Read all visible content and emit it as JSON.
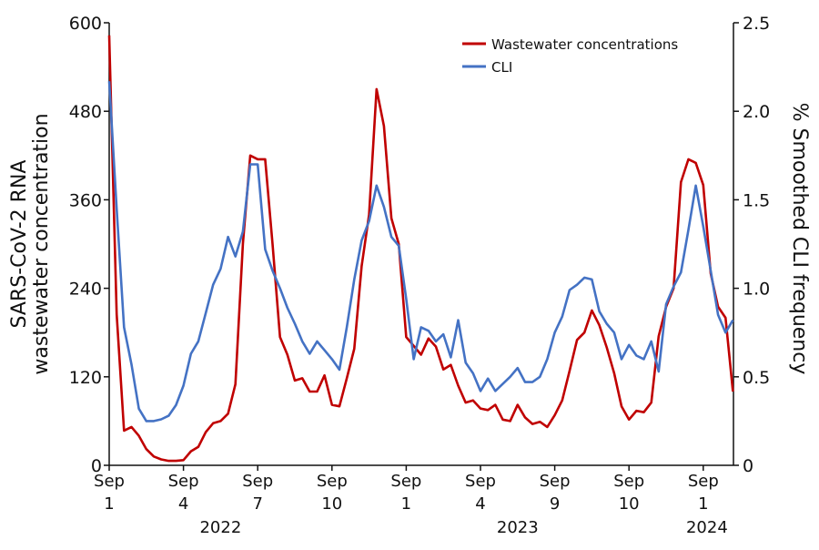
{
  "chart_data": {
    "type": "line",
    "title": "",
    "ylabel_left": [
      "SARS-CoV-2 RNA",
      "wastewater concentration"
    ],
    "ylabel_right": "% Smoothed CLI frequency",
    "ylim_left": [
      0,
      600
    ],
    "yticks_left": [
      "0",
      "120",
      "240",
      "360",
      "480",
      "600"
    ],
    "ylim_right": [
      0,
      2.5
    ],
    "yticks_right": [
      "0",
      "0.5",
      "1.0",
      "1.5",
      "2.0",
      "2.5"
    ],
    "xticks": [
      {
        "month": "Sep",
        "day": "1"
      },
      {
        "month": "Sep",
        "day": "4"
      },
      {
        "month": "Sep",
        "day": "7"
      },
      {
        "month": "Sep",
        "day": "10"
      },
      {
        "month": "Sep",
        "day": "1"
      },
      {
        "month": "Sep",
        "day": "4"
      },
      {
        "month": "Sep",
        "day": "9"
      },
      {
        "month": "Sep",
        "day": "10"
      },
      {
        "month": "Sep",
        "day": "1"
      }
    ],
    "years": [
      "2022",
      "2023",
      "2024"
    ],
    "grid": false,
    "legend_position": "top-right",
    "x": [
      0,
      0.1,
      0.2,
      0.3,
      0.4,
      0.5,
      0.6,
      0.7,
      0.8,
      0.9,
      1.0,
      1.1,
      1.2,
      1.3,
      1.4,
      1.5,
      1.6,
      1.7,
      1.8,
      1.9,
      2.0,
      2.1,
      2.2,
      2.3,
      2.4,
      2.5,
      2.6,
      2.7,
      2.8,
      2.9,
      3.0,
      3.1,
      3.2,
      3.3,
      3.4,
      3.5,
      3.6,
      3.7,
      3.8,
      3.9,
      4.0,
      4.1,
      4.2,
      4.3,
      4.4,
      4.5,
      4.6,
      4.7,
      4.8,
      4.9,
      5.0,
      5.1,
      5.2,
      5.3,
      5.4,
      5.5,
      5.6,
      5.7,
      5.8,
      5.9,
      6.0,
      6.1,
      6.2,
      6.3,
      6.4,
      6.5,
      6.6,
      6.7,
      6.8,
      6.9,
      7.0,
      7.1,
      7.2,
      7.3,
      7.4,
      7.5,
      7.6,
      7.7,
      7.8,
      7.9,
      8.0,
      8.1,
      8.2,
      8.3,
      8.4
    ],
    "series": [
      {
        "name": "Wastewater concentrations",
        "axis": "left",
        "color": "#c00000",
        "values": [
          583,
          205,
          47,
          52,
          40,
          22,
          12,
          8,
          6,
          6,
          7,
          19,
          25,
          45,
          57,
          60,
          70,
          110,
          300,
          420,
          415,
          415,
          300,
          174,
          150,
          115,
          118,
          100,
          100,
          122,
          82,
          80,
          118,
          158,
          270,
          340,
          510,
          460,
          335,
          300,
          174,
          162,
          150,
          172,
          161,
          130,
          136,
          108,
          85,
          88,
          77,
          75,
          82,
          62,
          60,
          82,
          65,
          56,
          59,
          52,
          68,
          88,
          128,
          170,
          180,
          210,
          190,
          160,
          125,
          80,
          62,
          74,
          72,
          85,
          175,
          215,
          240,
          384,
          415,
          410,
          380,
          260,
          215,
          200,
          100
        ]
      },
      {
        "name": "CLI",
        "axis": "right",
        "color": "#4472c4",
        "values": [
          2.17,
          1.45,
          0.78,
          0.57,
          0.32,
          0.25,
          0.25,
          0.26,
          0.28,
          0.34,
          0.45,
          0.63,
          0.7,
          0.86,
          1.02,
          1.11,
          1.29,
          1.18,
          1.32,
          1.7,
          1.7,
          1.22,
          1.1,
          1.0,
          0.89,
          0.8,
          0.7,
          0.63,
          0.7,
          0.65,
          0.6,
          0.54,
          0.78,
          1.05,
          1.27,
          1.38,
          1.58,
          1.46,
          1.29,
          1.24,
          0.94,
          0.6,
          0.78,
          0.76,
          0.7,
          0.74,
          0.61,
          0.82,
          0.58,
          0.52,
          0.42,
          0.49,
          0.42,
          0.46,
          0.5,
          0.55,
          0.47,
          0.47,
          0.5,
          0.6,
          0.75,
          0.84,
          0.99,
          1.02,
          1.06,
          1.05,
          0.87,
          0.8,
          0.75,
          0.6,
          0.68,
          0.62,
          0.6,
          0.7,
          0.53,
          0.91,
          1.01,
          1.09,
          1.33,
          1.58,
          1.35,
          1.1,
          0.85,
          0.75,
          0.82
        ]
      }
    ]
  }
}
